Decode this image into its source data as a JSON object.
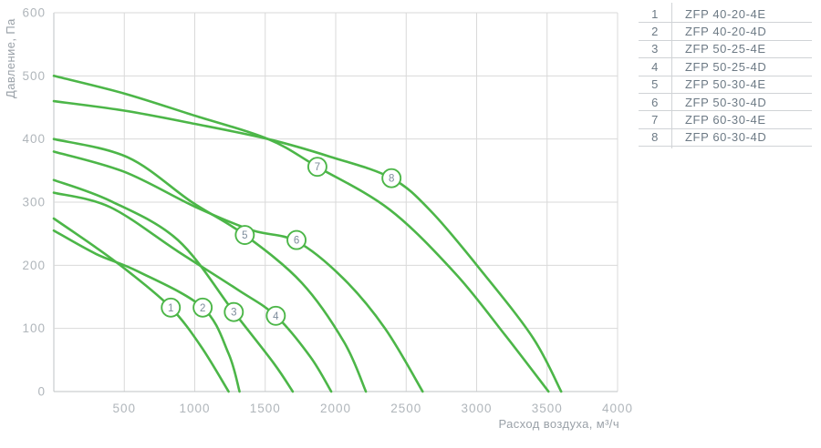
{
  "legend": {
    "rows": [
      {
        "num": "1",
        "model": "ZFP 40-20-4E"
      },
      {
        "num": "2",
        "model": "ZFP 40-20-4D"
      },
      {
        "num": "3",
        "model": "ZFP 50-25-4E"
      },
      {
        "num": "4",
        "model": "ZFP 50-25-4D"
      },
      {
        "num": "5",
        "model": "ZFP 50-30-4E"
      },
      {
        "num": "6",
        "model": "ZFP 50-30-4D"
      },
      {
        "num": "7",
        "model": "ZFP 60-30-4E"
      },
      {
        "num": "8",
        "model": "ZFP 60-30-4D"
      }
    ]
  },
  "chart_data": {
    "type": "line",
    "title": "",
    "xlabel": "Расход воздуха, м³/ч",
    "ylabel": "Давление, Па",
    "xlim": [
      0,
      4000
    ],
    "ylim": [
      0,
      600
    ],
    "x_ticks": [
      500,
      1000,
      1500,
      2000,
      2500,
      3000,
      3500,
      4000
    ],
    "y_ticks": [
      0,
      100,
      200,
      300,
      400,
      500,
      600
    ],
    "grid": true,
    "legend_position": "right-table",
    "series": [
      {
        "id": "1",
        "name": "ZFP 40-20-4E",
        "label_at": [
          830,
          133
        ],
        "points": [
          [
            0,
            274
          ],
          [
            300,
            228
          ],
          [
            530,
            190
          ],
          [
            830,
            133
          ],
          [
            1043,
            72
          ],
          [
            1240,
            0
          ]
        ]
      },
      {
        "id": "2",
        "name": "ZFP 40-20-4D",
        "label_at": [
          1056,
          133
        ],
        "points": [
          [
            0,
            255
          ],
          [
            300,
            218
          ],
          [
            600,
            190
          ],
          [
            1056,
            133
          ],
          [
            1240,
            60
          ],
          [
            1318,
            0
          ]
        ]
      },
      {
        "id": "3",
        "name": "ZFP 50-25-4E",
        "label_at": [
          1277,
          126
        ],
        "points": [
          [
            0,
            335
          ],
          [
            400,
            302
          ],
          [
            880,
            240
          ],
          [
            1277,
            126
          ],
          [
            1560,
            45
          ],
          [
            1695,
            0
          ]
        ]
      },
      {
        "id": "4",
        "name": "ZFP 50-25-4D",
        "label_at": [
          1575,
          120
        ],
        "points": [
          [
            0,
            315
          ],
          [
            400,
            292
          ],
          [
            880,
            222
          ],
          [
            1300,
            162
          ],
          [
            1575,
            120
          ],
          [
            1820,
            55
          ],
          [
            1968,
            0
          ]
        ]
      },
      {
        "id": "5",
        "name": "ZFP 50-30-4E",
        "label_at": [
          1355,
          248
        ],
        "points": [
          [
            0,
            400
          ],
          [
            525,
            371
          ],
          [
            980,
            300
          ],
          [
            1355,
            248
          ],
          [
            1760,
            172
          ],
          [
            2060,
            78
          ],
          [
            2214,
            0
          ]
        ]
      },
      {
        "id": "6",
        "name": "ZFP 50-30-4D",
        "label_at": [
          1722,
          240
        ],
        "points": [
          [
            0,
            380
          ],
          [
            500,
            348
          ],
          [
            1000,
            293
          ],
          [
            1400,
            256
          ],
          [
            1722,
            238
          ],
          [
            2050,
            180
          ],
          [
            2350,
            100
          ],
          [
            2617,
            0
          ]
        ]
      },
      {
        "id": "7",
        "name": "ZFP 60-30-4E",
        "label_at": [
          1870,
          356
        ],
        "points": [
          [
            0,
            500
          ],
          [
            500,
            472
          ],
          [
            1000,
            437
          ],
          [
            1520,
            400
          ],
          [
            1870,
            356
          ],
          [
            2384,
            288
          ],
          [
            2845,
            188
          ],
          [
            3200,
            90
          ],
          [
            3510,
            0
          ]
        ]
      },
      {
        "id": "8",
        "name": "ZFP 60-30-4D",
        "label_at": [
          2396,
          338
        ],
        "points": [
          [
            0,
            460
          ],
          [
            500,
            445
          ],
          [
            1000,
            424
          ],
          [
            1520,
            400
          ],
          [
            1960,
            372
          ],
          [
            2396,
            338
          ],
          [
            2683,
            284
          ],
          [
            3045,
            188
          ],
          [
            3400,
            85
          ],
          [
            3600,
            0
          ]
        ]
      }
    ]
  },
  "colors": {
    "curve": "#4cb648",
    "grid": "#d9d9d9",
    "axis": "#bfc3c6",
    "tick_text": "#b0b6bb",
    "axis_title": "#9aa1a8",
    "legend_text": "#6d7a85",
    "circle_text": "#7d8c9b",
    "circle_fill": "#ffffff",
    "table_line": "#d0d3d6"
  }
}
